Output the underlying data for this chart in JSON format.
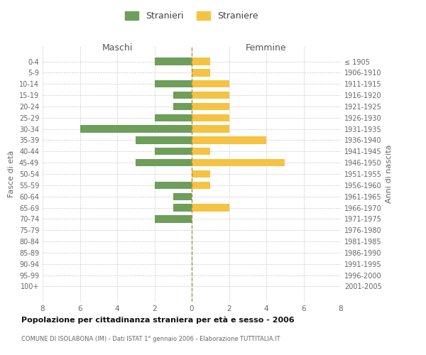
{
  "age_groups": [
    "0-4",
    "5-9",
    "10-14",
    "15-19",
    "20-24",
    "25-29",
    "30-34",
    "35-39",
    "40-44",
    "45-49",
    "50-54",
    "55-59",
    "60-64",
    "65-69",
    "70-74",
    "75-79",
    "80-84",
    "85-89",
    "90-94",
    "95-99",
    "100+"
  ],
  "birth_years": [
    "2001-2005",
    "1996-2000",
    "1991-1995",
    "1986-1990",
    "1981-1985",
    "1976-1980",
    "1971-1975",
    "1966-1970",
    "1961-1965",
    "1956-1960",
    "1951-1955",
    "1946-1950",
    "1941-1945",
    "1936-1940",
    "1931-1935",
    "1926-1930",
    "1921-1925",
    "1916-1920",
    "1911-1915",
    "1906-1910",
    "≤ 1905"
  ],
  "maschi": [
    2,
    0,
    2,
    1,
    1,
    2,
    6,
    3,
    2,
    3,
    0,
    2,
    1,
    1,
    2,
    0,
    0,
    0,
    0,
    0,
    0
  ],
  "femmine": [
    1,
    1,
    2,
    2,
    2,
    2,
    2,
    4,
    1,
    5,
    1,
    1,
    0,
    2,
    0,
    0,
    0,
    0,
    0,
    0,
    0
  ],
  "color_maschi": "#6d9e5a",
  "color_femmine": "#f5c242",
  "title": "Popolazione per cittadinanza straniera per età e sesso - 2006",
  "subtitle": "COMUNE DI ISOLABONA (IM) - Dati ISTAT 1° gennaio 2006 - Elaborazione TUTTITALIA.IT",
  "ylabel_left": "Fasce di età",
  "ylabel_right": "Anni di nascita",
  "xlabel_left": "Maschi",
  "xlabel_right": "Femmine",
  "legend_maschi": "Stranieri",
  "legend_femmine": "Straniere",
  "xlim": 8,
  "background_color": "#ffffff",
  "grid_color": "#cccccc"
}
